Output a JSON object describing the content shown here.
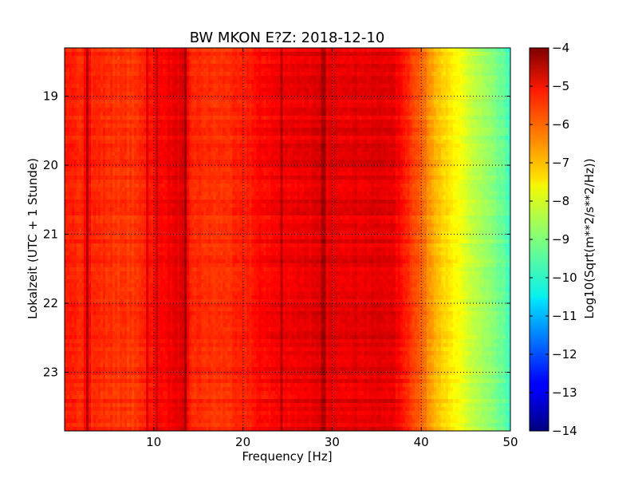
{
  "chart_data": {
    "type": "heatmap",
    "title": "BW MKON E?Z: 2018-12-10",
    "xlabel": "Frequency [Hz]",
    "ylabel": "Lokalzeit (UTC + 1 Stunde)",
    "xlim": [
      0,
      50
    ],
    "ylim": [
      23.85,
      18.3
    ],
    "x_ticks": [
      10,
      20,
      30,
      40,
      50
    ],
    "x_tick_labels": [
      "10",
      "20",
      "30",
      "40",
      "50"
    ],
    "y_ticks": [
      19,
      20,
      21,
      22,
      23
    ],
    "y_tick_labels": [
      "19",
      "20",
      "21",
      "22",
      "23"
    ],
    "grid": true,
    "colorbar": {
      "label": "Log10(Sqrt(m**2/s**2/Hz))",
      "range": [
        -14,
        -4
      ],
      "ticks": [
        -4,
        -5,
        -6,
        -7,
        -8,
        -9,
        -10,
        -11,
        -12,
        -13,
        -14
      ],
      "tick_labels": [
        "−4",
        "−5",
        "−6",
        "−7",
        "−8",
        "−9",
        "−10",
        "−11",
        "−12",
        "−13",
        "−14"
      ],
      "colormap": "jet"
    },
    "spectrum_profile": {
      "frequency_hz": [
        0,
        2,
        2.5,
        3,
        5,
        8,
        9,
        10.5,
        13.5,
        14,
        17,
        20,
        22,
        25,
        28,
        31,
        34,
        36.5,
        38,
        39.5,
        41,
        42,
        43,
        44,
        45,
        46,
        47,
        48,
        49,
        50
      ],
      "log10_amplitude": [
        -5.6,
        -5.6,
        -4.9,
        -5.6,
        -5.7,
        -5.8,
        -5.5,
        -5.3,
        -4.9,
        -5.6,
        -5.75,
        -5.6,
        -5.3,
        -5.1,
        -5.0,
        -5.0,
        -5.0,
        -4.95,
        -5.4,
        -6.0,
        -6.7,
        -7.1,
        -7.5,
        -7.8,
        -8.1,
        -8.4,
        -8.7,
        -8.95,
        -9.25,
        -9.6
      ]
    },
    "spectral_lines_hz": [
      2.5,
      9.2,
      10.4,
      13.6,
      24.3,
      29.0
    ]
  }
}
